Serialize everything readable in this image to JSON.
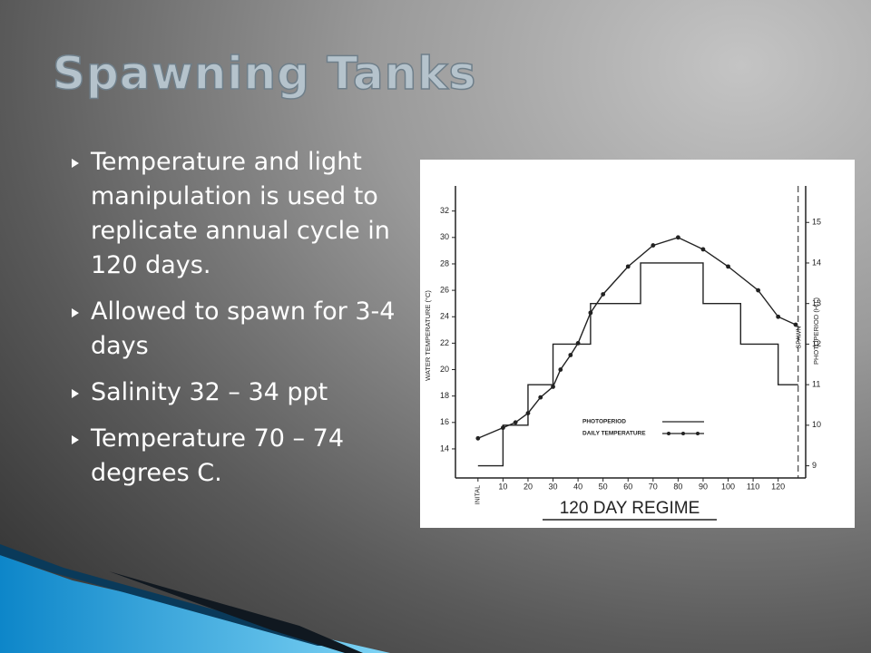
{
  "title": "Spawning Tanks",
  "bullets": [
    "Temperature and light manipulation is used to replicate annual cycle in 120 days.",
    "Allowed to spawn for 3-4 days",
    "Salinity 32 – 34 ppt",
    "Temperature 70 – 74 degrees C."
  ],
  "chart_data": {
    "type": "line",
    "caption": "120 DAY REGIME",
    "ylabel": "WATER TEMPERATURE (°C)",
    "y2label": "PHOTOPERIOD (H L)",
    "xlim": [
      -9,
      131
    ],
    "ylim": [
      11.8,
      33.9
    ],
    "y2lim": [
      8.7,
      15.9
    ],
    "xticks": [
      {
        "value": 0,
        "label": "INITAL"
      },
      10,
      20,
      30,
      40,
      50,
      60,
      70,
      80,
      90,
      100,
      110,
      120
    ],
    "yticks": [
      14,
      16,
      18,
      20,
      22,
      24,
      26,
      28,
      30,
      32
    ],
    "y2ticks": [
      9,
      10,
      11,
      12,
      13,
      14,
      15
    ],
    "annotation": {
      "text": "SPAWN",
      "x": 128
    },
    "series": [
      {
        "name": "PHOTOPERIOD",
        "axis": "y2",
        "step": true,
        "color": "#222222",
        "x": [
          0,
          10,
          20,
          30,
          45,
          65,
          90,
          105,
          120,
          128
        ],
        "values": [
          9,
          10,
          11,
          12,
          13,
          14,
          13,
          12,
          11,
          11
        ]
      },
      {
        "name": "DAILY TEMPERATURE",
        "color": "#222222",
        "x": [
          0,
          10,
          15,
          20,
          25,
          30,
          33,
          37,
          40,
          45,
          50,
          60,
          70,
          80,
          90,
          100,
          112,
          120,
          127
        ],
        "values": [
          14.8,
          15.6,
          16.0,
          16.7,
          17.9,
          18.7,
          20.0,
          21.1,
          22.0,
          24.3,
          25.7,
          27.8,
          29.4,
          30.0,
          29.1,
          27.8,
          26.0,
          24.0,
          23.4
        ]
      }
    ]
  }
}
